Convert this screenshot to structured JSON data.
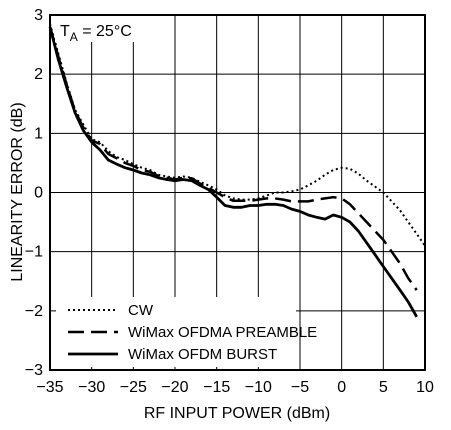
{
  "chart_data": {
    "type": "line",
    "xlabel": "RF INPUT POWER (dBm)",
    "ylabel": "LINEARITY ERROR (dB)",
    "xlim": [
      -35,
      10
    ],
    "ylim": [
      -3,
      3
    ],
    "x_ticks": [
      -35,
      -30,
      -25,
      -20,
      -15,
      -10,
      -5,
      0,
      5,
      10
    ],
    "x_tick_labels": [
      "−35",
      "−30",
      "−25",
      "−20",
      "−15",
      "−10",
      "−5",
      "0",
      "5",
      "10"
    ],
    "y_ticks": [
      -3,
      -2,
      -1,
      0,
      1,
      2,
      3
    ],
    "y_tick_labels": [
      "−3",
      "−2",
      "−1",
      "0",
      "1",
      "2",
      "3"
    ],
    "grid": true,
    "legend_position": "bottom-left",
    "annotation": {
      "main": "T",
      "sub": "A",
      "rest": " = 25°C"
    },
    "series": [
      {
        "name": "CW",
        "style": "dotted",
        "x": [
          -35,
          -34,
          -33,
          -32,
          -31,
          -30,
          -29,
          -28,
          -27,
          -26,
          -25,
          -24,
          -23,
          -22,
          -21,
          -20,
          -19,
          -18,
          -17,
          -16,
          -15,
          -14,
          -13,
          -12,
          -11,
          -10,
          -9,
          -8,
          -7,
          -6,
          -5,
          -4,
          -3,
          -2,
          -1,
          0,
          1,
          2,
          3,
          4,
          5,
          6,
          7,
          8,
          9,
          10
        ],
        "y": [
          2.85,
          2.35,
          1.85,
          1.4,
          1.15,
          0.9,
          0.85,
          0.7,
          0.6,
          0.55,
          0.48,
          0.42,
          0.38,
          0.3,
          0.27,
          0.25,
          0.27,
          0.25,
          0.18,
          0.12,
          0.05,
          -0.05,
          -0.1,
          -0.12,
          -0.12,
          -0.1,
          -0.05,
          0.0,
          0.0,
          0.02,
          0.05,
          0.12,
          0.2,
          0.3,
          0.38,
          0.42,
          0.4,
          0.32,
          0.2,
          0.1,
          0.0,
          -0.15,
          -0.3,
          -0.5,
          -0.7,
          -0.9
        ]
      },
      {
        "name": "WiMax OFDMA PREAMBLE",
        "style": "dashed",
        "x": [
          -35,
          -34,
          -33,
          -32,
          -31,
          -30,
          -29,
          -28,
          -27,
          -26,
          -25,
          -24,
          -23,
          -22,
          -21,
          -20,
          -19,
          -18,
          -17,
          -16,
          -15,
          -14,
          -13,
          -12,
          -11,
          -10,
          -9,
          -8,
          -7,
          -6,
          -5,
          -4,
          -3,
          -2,
          -1,
          0,
          1,
          2,
          3,
          4,
          5,
          6,
          7,
          8,
          9
        ],
        "y": [
          2.8,
          2.3,
          1.82,
          1.38,
          1.1,
          0.88,
          0.82,
          0.65,
          0.58,
          0.5,
          0.45,
          0.38,
          0.35,
          0.28,
          0.25,
          0.22,
          0.25,
          0.24,
          0.15,
          0.08,
          0.0,
          -0.08,
          -0.14,
          -0.14,
          -0.14,
          -0.12,
          -0.1,
          -0.1,
          -0.12,
          -0.15,
          -0.15,
          -0.15,
          -0.12,
          -0.1,
          -0.08,
          -0.1,
          -0.2,
          -0.35,
          -0.5,
          -0.65,
          -0.8,
          -1.0,
          -1.2,
          -1.45,
          -1.65
        ]
      },
      {
        "name": "WiMax OFDM BURST",
        "style": "solid",
        "x": [
          -35,
          -34,
          -33,
          -32,
          -31,
          -30,
          -29,
          -28,
          -27,
          -26,
          -25,
          -24,
          -23,
          -22,
          -21,
          -20,
          -19,
          -18,
          -17,
          -16,
          -15,
          -14,
          -13,
          -12,
          -11,
          -10,
          -9,
          -8,
          -7,
          -6,
          -5,
          -4,
          -3,
          -2,
          -1,
          0,
          1,
          2,
          3,
          4,
          5,
          6,
          7,
          8,
          9
        ],
        "y": [
          2.8,
          2.25,
          1.78,
          1.35,
          1.05,
          0.85,
          0.72,
          0.55,
          0.48,
          0.42,
          0.38,
          0.33,
          0.3,
          0.25,
          0.22,
          0.2,
          0.22,
          0.2,
          0.12,
          0.05,
          -0.08,
          -0.22,
          -0.25,
          -0.25,
          -0.22,
          -0.22,
          -0.2,
          -0.2,
          -0.22,
          -0.28,
          -0.32,
          -0.38,
          -0.42,
          -0.45,
          -0.38,
          -0.42,
          -0.5,
          -0.65,
          -0.85,
          -1.05,
          -1.25,
          -1.45,
          -1.65,
          -1.85,
          -2.1
        ]
      }
    ]
  }
}
